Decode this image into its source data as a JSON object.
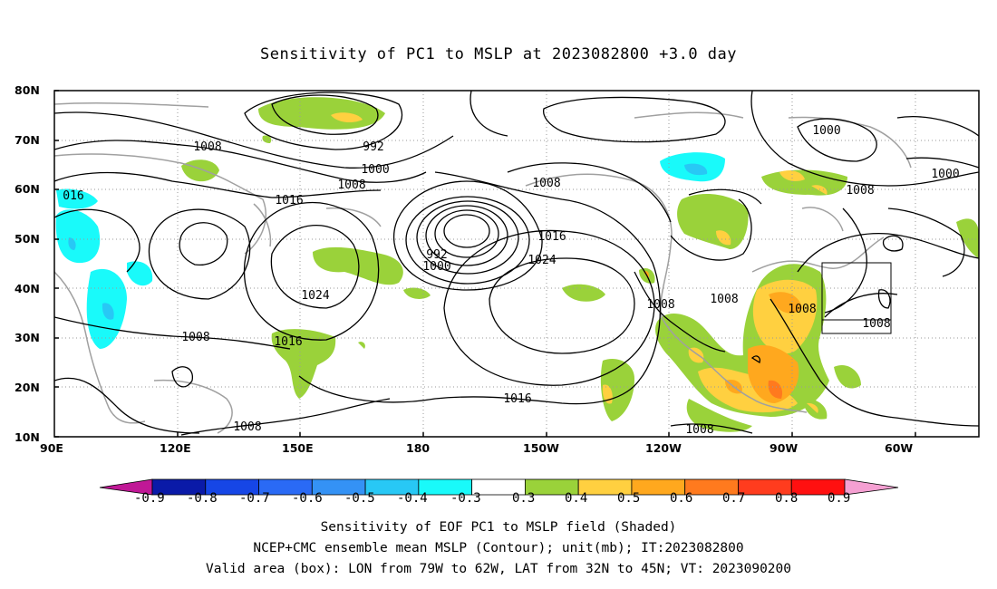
{
  "title": "Sensitivity of PC1 to MSLP at 2023082800 +3.0 day",
  "lat_labels": [
    "80N",
    "70N",
    "60N",
    "50N",
    "40N",
    "30N",
    "20N",
    "10N"
  ],
  "lon_labels": [
    "90E",
    "120E",
    "150E",
    "180",
    "150W",
    "120W",
    "90W",
    "60W"
  ],
  "contour_labels": {
    "c1008a": "1008",
    "c992a": "992",
    "c1000a": "1000",
    "c1008b": "1008",
    "c016": "016",
    "c1016a": "1016",
    "c1024a": "1024",
    "c1008c": "1008",
    "c1016b": "1016",
    "c1008d": "1008",
    "c992b": "992",
    "c1000b": "1000",
    "c1008e": "1008",
    "c1016c": "1016",
    "c1024b": "1024",
    "c1016d": "1016",
    "c1008f": "1008",
    "c1008g": "1008",
    "c1008h": "1008",
    "c1000c": "1000",
    "c1000d": "1000",
    "c1008i": "1008",
    "c1008j": "1008",
    "c1008k": "1008"
  },
  "colorbar": {
    "labels": [
      "-0.9",
      "-0.8",
      "-0.7",
      "-0.6",
      "-0.5",
      "-0.4",
      "-0.3",
      "0.3",
      "0.4",
      "0.5",
      "0.6",
      "0.7",
      "0.8",
      "0.9"
    ],
    "colors": [
      "#0a1aa8",
      "#1646e6",
      "#2a6af5",
      "#3492f5",
      "#28c8f5",
      "#19fafa",
      "#ffffff",
      "#9ad23a",
      "#ffd040",
      "#ffa81e",
      "#ff7a1e",
      "#ff3c1e",
      "#ff1010"
    ],
    "low_arrow_color": "#c01896",
    "high_arrow_color": "#f5a0d2"
  },
  "footer": {
    "line1": "Sensitivity of EOF PC1 to MSLP field (Shaded)",
    "line2": "NCEP+CMC ensemble mean MSLP (Contour); unit(mb); IT:2023082800",
    "line3": "Valid area (box): LON from 79W to 62W, LAT from 32N to 45N; VT: 2023090200"
  }
}
